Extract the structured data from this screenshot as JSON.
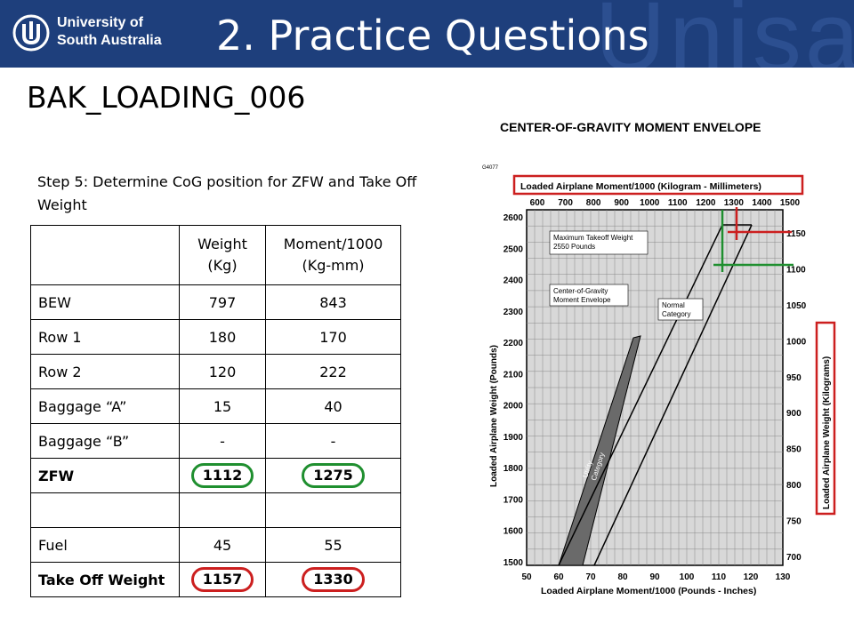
{
  "header": {
    "university_line1": "University of",
    "university_line2": "South Australia",
    "title": "2. Practice Questions",
    "watermark": "Unisa"
  },
  "subtitle": "BAK_LOADING_006",
  "step_text": "Step 5: Determine CoG position for ZFW and Take Off Weight",
  "table": {
    "headers": [
      "",
      "Weight\n(Kg)",
      "Moment/1000\n(Kg-mm)"
    ],
    "rows": [
      {
        "label": "BEW",
        "weight": "797",
        "moment": "843"
      },
      {
        "label": "Row 1",
        "weight": "180",
        "moment": "170"
      },
      {
        "label": "Row 2",
        "weight": "120",
        "moment": "222"
      },
      {
        "label": "Baggage “A”",
        "weight": "15",
        "moment": "40"
      },
      {
        "label": "Baggage “B”",
        "weight": "-",
        "moment": "-"
      },
      {
        "label": "ZFW",
        "weight": "1112",
        "moment": "1275"
      },
      {
        "label": "",
        "weight": "",
        "moment": ""
      },
      {
        "label": "Fuel",
        "weight": "45",
        "moment": "55"
      },
      {
        "label": "Take Off Weight",
        "weight": "1157",
        "moment": "1330"
      }
    ]
  },
  "chart": {
    "title": "CENTER-OF-GRAVITY MOMENT ENVELOPE",
    "figure_code": "G4077",
    "top_axis_label": "Loaded Airplane Moment/1000 (Kilogram - Millimeters)",
    "top_ticks": [
      "600",
      "700",
      "800",
      "900",
      "1000",
      "1100",
      "1200",
      "1300",
      "1400",
      "1500"
    ],
    "bottom_axis_label": "Loaded Airplane Moment/1000 (Pounds - Inches)",
    "bottom_ticks": [
      "50",
      "60",
      "70",
      "80",
      "90",
      "100",
      "110",
      "120",
      "130"
    ],
    "left_axis_label": "Loaded Airplane Weight (Pounds)",
    "left_ticks": [
      "2600",
      "2500",
      "2400",
      "2300",
      "2200",
      "2100",
      "2000",
      "1900",
      "1800",
      "1700",
      "1600",
      "1500"
    ],
    "right_axis_label": "Loaded Airplane Weight (Kilograms)",
    "right_ticks": [
      "1150",
      "1100",
      "1050",
      "1000",
      "950",
      "900",
      "850",
      "800",
      "750",
      "700"
    ],
    "annotations": {
      "max_takeoff": "Maximum Takeoff Weight\n2550 Pounds",
      "cg_envelope": "Center-of-Gravity\nMoment Envelope",
      "normal": "Normal\nCategory",
      "utility": "Utility\nCategory"
    },
    "colors": {
      "red": "#cc1f1f",
      "green": "#1f8f2f"
    }
  }
}
